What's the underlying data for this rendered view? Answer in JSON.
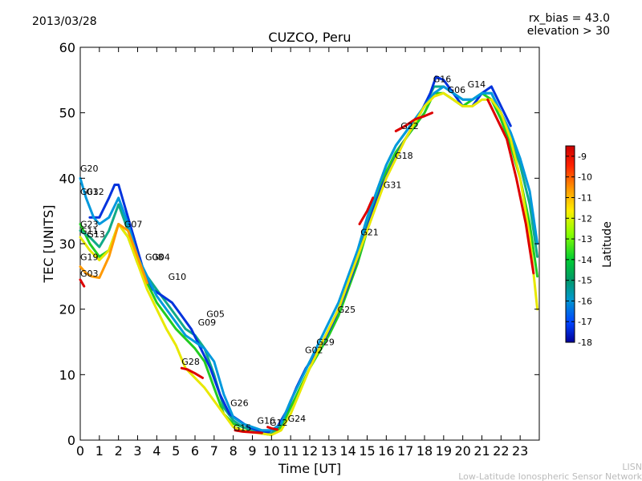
{
  "header": {
    "date": "2013/03/28",
    "info_line1": "rx_bias = 43.0",
    "info_line2": "elevation > 30"
  },
  "footer": {
    "line1": "LISN",
    "line2": "Low-Latitude Ionospheric Sensor Network"
  },
  "chart_data": {
    "type": "line",
    "title": "CUZCO, Peru",
    "xlabel": "Time [UT]",
    "ylabel": "TEC [UNITS]",
    "xlim": [
      0,
      24
    ],
    "ylim": [
      0,
      60
    ],
    "xticks": [
      "0",
      "1",
      "2",
      "3",
      "4",
      "5",
      "6",
      "7",
      "8",
      "9",
      "10",
      "11",
      "12",
      "13",
      "14",
      "15",
      "16",
      "17",
      "18",
      "19",
      "20",
      "21",
      "22",
      "23"
    ],
    "yticks": [
      "0",
      "10",
      "20",
      "30",
      "40",
      "50",
      "60"
    ],
    "colorbar": {
      "label": "Latitude",
      "range": [
        -18,
        -8.5
      ],
      "ticks": [
        "-9",
        "-10",
        "-11",
        "-12",
        "-13",
        "-14",
        "-15",
        "-16",
        "-17",
        "-18"
      ]
    },
    "series": [
      {
        "name": "trace-green-1",
        "color": "#22cc22",
        "x": [
          0,
          0.5,
          1,
          1.5,
          2,
          2.5,
          3,
          3.5,
          4,
          4.5,
          5,
          5.5,
          6,
          6.5,
          7,
          7.5,
          8,
          8.5,
          9,
          9.5,
          10,
          10.5,
          11,
          11.5,
          12,
          12.5,
          13,
          13.5,
          14,
          14.5,
          15,
          15.5,
          16,
          16.5,
          17,
          17.5,
          18,
          18.5,
          19,
          19.5,
          20,
          20.5,
          21,
          21.5,
          22,
          22.5,
          23,
          23.5,
          23.9
        ],
        "y": [
          33,
          30,
          28,
          29,
          33,
          31,
          27,
          24,
          21,
          19,
          17,
          15.5,
          14,
          12,
          8,
          4,
          2.5,
          2,
          1.5,
          1,
          0.8,
          2,
          5,
          8,
          11,
          13.5,
          16,
          19,
          23,
          27,
          32,
          37,
          41,
          44,
          46,
          48,
          50,
          53,
          53,
          52,
          51,
          52,
          53,
          52,
          49,
          45,
          40,
          33,
          25
        ]
      },
      {
        "name": "trace-teal",
        "color": "#11aa88",
        "x": [
          0,
          0.5,
          1,
          1.5,
          2,
          2.5,
          3,
          3.5,
          4,
          4.5,
          5,
          5.5,
          6,
          6.5,
          7,
          7.5,
          8,
          8.5,
          9,
          9.5,
          10,
          10.5,
          11,
          11.5,
          12,
          12.5,
          13,
          13.5,
          14,
          14.5,
          15,
          15.5,
          16,
          16.5,
          17,
          17.5,
          18,
          18.5,
          19,
          19.5,
          20,
          20.5,
          21,
          21.5,
          22,
          22.5,
          23,
          23.5,
          23.9
        ],
        "y": [
          32,
          31,
          29.5,
          32,
          36,
          32,
          28,
          25,
          23,
          21,
          19,
          17,
          16,
          14,
          10,
          5,
          3,
          2,
          1.5,
          1.2,
          1,
          2.5,
          6,
          9,
          12,
          14,
          17,
          20,
          24,
          28,
          33,
          38,
          42,
          45,
          47,
          49,
          51,
          54,
          54,
          53,
          52,
          52,
          53,
          53,
          50,
          46,
          42,
          36,
          28
        ]
      },
      {
        "name": "trace-blue",
        "color": "#0033dd",
        "x": [
          0.5,
          1,
          1.5,
          1.8,
          2,
          2.3,
          2.8,
          3.3,
          3.8,
          4.3,
          4.8,
          5.3,
          5.8,
          6.3,
          6.8,
          7.3,
          7.8,
          8.3,
          8.8,
          9.3,
          9.8,
          10.3,
          10.8,
          11.3,
          11.8,
          12.3,
          12.8,
          13.3,
          13.8,
          14.3,
          14.8,
          15.3,
          15.8,
          16.3,
          16.8,
          17.3,
          17.8,
          18.3,
          18.6,
          19,
          19.5,
          20,
          20.5,
          21,
          21.5,
          22,
          22.5
        ],
        "y": [
          34,
          34,
          37,
          39,
          39,
          36,
          31,
          26,
          23,
          22,
          21,
          19,
          17,
          14,
          11,
          7,
          4,
          3,
          2,
          1.5,
          1.2,
          2,
          4.5,
          8,
          11,
          13,
          15.5,
          18.5,
          22,
          26,
          30.5,
          35,
          39,
          42,
          45,
          47.5,
          50,
          53,
          55.5,
          55,
          53,
          51,
          51,
          53,
          54,
          51,
          48
        ]
      },
      {
        "name": "trace-lightblue",
        "color": "#0099dd",
        "x": [
          0,
          0.3,
          0.7,
          1,
          1.5,
          2,
          2.5,
          3,
          3.5,
          4,
          4.5,
          5,
          5.5,
          6,
          6.5,
          7,
          7.5,
          8,
          8.5,
          9,
          9.5,
          10,
          10.5,
          11,
          11.5,
          12,
          12.5,
          13,
          13.5,
          14,
          14.5,
          15,
          15.5,
          16,
          16.5,
          17,
          17.5,
          18,
          18.5,
          19,
          19.5,
          20,
          20.5,
          21,
          21.5,
          22,
          22.5,
          23,
          23.5,
          23.9
        ],
        "y": [
          40,
          37,
          34,
          33,
          34,
          37,
          33,
          28,
          25,
          22,
          20,
          18,
          16,
          15,
          14,
          12,
          7,
          3.5,
          2.5,
          2,
          1.5,
          1.5,
          2.5,
          6,
          9,
          12,
          15,
          18,
          21,
          25,
          29,
          34,
          38,
          42,
          45,
          47,
          49,
          51,
          53,
          54,
          53,
          52,
          52,
          53,
          53,
          50,
          47,
          43,
          38,
          30
        ]
      },
      {
        "name": "trace-yellow",
        "color": "#e8e800",
        "x": [
          0,
          0.5,
          1,
          1.5,
          2,
          2.5,
          3,
          3.5,
          4,
          4.5,
          5,
          5.5,
          6,
          6.5,
          7,
          7.5,
          8,
          8.5,
          9,
          9.5,
          10,
          10.5,
          11,
          11.5,
          12,
          12.5,
          13,
          13.5,
          14,
          14.5,
          15,
          15.5,
          16,
          16.5,
          17,
          17.5,
          18,
          18.5,
          19,
          19.5,
          20,
          20.5,
          21,
          21.5,
          22,
          22.5,
          23,
          23.5,
          23.9
        ],
        "y": [
          31,
          29,
          27.5,
          29,
          33,
          31,
          27,
          23,
          20,
          17,
          14.5,
          11,
          9.5,
          8,
          6,
          4,
          2,
          1.5,
          1.2,
          1,
          0.8,
          1.5,
          4,
          7.5,
          11,
          14,
          17,
          20,
          24,
          28,
          32,
          36,
          40,
          43,
          46,
          48.5,
          51,
          52.5,
          53,
          52,
          51,
          51,
          52,
          52,
          50,
          46,
          40,
          31,
          20
        ]
      },
      {
        "name": "trace-orange",
        "color": "#ff9900",
        "x": [
          0,
          0.3,
          0.6,
          1,
          1.5,
          2,
          2.5,
          3,
          3.5
        ],
        "y": [
          26.5,
          25.5,
          25,
          24.8,
          28,
          33,
          32,
          28,
          24
        ]
      },
      {
        "name": "trace-red-g03",
        "color": "#dd0000",
        "x": [
          0,
          0.1,
          0.2
        ],
        "y": [
          24.5,
          24,
          23.5
        ]
      },
      {
        "name": "trace-red-g28",
        "color": "#dd0000",
        "x": [
          5.3,
          5.6,
          6,
          6.4
        ],
        "y": [
          11,
          10.8,
          10.2,
          9.5
        ]
      },
      {
        "name": "trace-red-g22",
        "color": "#dd0000",
        "x": [
          16.5,
          17,
          17.5,
          18,
          18.4
        ],
        "y": [
          47.2,
          48,
          49,
          49.5,
          50
        ]
      },
      {
        "name": "trace-red-g15",
        "color": "#dd0000",
        "x": [
          8.1,
          8.5,
          9,
          9.5
        ],
        "y": [
          1.5,
          1.3,
          1.2,
          1.1
        ]
      },
      {
        "name": "trace-red-late",
        "color": "#dd0000",
        "x": [
          21.3,
          21.8,
          22.3,
          22.8,
          23.3,
          23.7
        ],
        "y": [
          52,
          49,
          46,
          40,
          33,
          25.5
        ]
      },
      {
        "name": "trace-red-g21",
        "color": "#dd0000",
        "x": [
          14.6,
          15,
          15.3
        ],
        "y": [
          33,
          35,
          37
        ]
      },
      {
        "name": "trace-red-g12",
        "color": "#dd0000",
        "x": [
          9.8,
          10,
          10.3
        ],
        "y": [
          2,
          1.8,
          1.6
        ]
      }
    ],
    "annotations": [
      {
        "text": "G20",
        "x": 0.0,
        "y": 41
      },
      {
        "text": "G01",
        "x": 0.0,
        "y": 37.5
      },
      {
        "text": "G32",
        "x": 0.3,
        "y": 37.5
      },
      {
        "text": "G23",
        "x": 0.0,
        "y": 32.5
      },
      {
        "text": "G11",
        "x": 0.0,
        "y": 31.5
      },
      {
        "text": "G13",
        "x": 0.35,
        "y": 31
      },
      {
        "text": "G07",
        "x": 2.3,
        "y": 32.5
      },
      {
        "text": "G19",
        "x": 0.0,
        "y": 27.5
      },
      {
        "text": "G03",
        "x": 0.0,
        "y": 25.0
      },
      {
        "text": "G08",
        "x": 3.4,
        "y": 27.5
      },
      {
        "text": "G04",
        "x": 3.75,
        "y": 27.5
      },
      {
        "text": "G10",
        "x": 4.6,
        "y": 24.5
      },
      {
        "text": "G05",
        "x": 6.6,
        "y": 18.8
      },
      {
        "text": "G09",
        "x": 6.15,
        "y": 17.5
      },
      {
        "text": "G28",
        "x": 5.3,
        "y": 11.5
      },
      {
        "text": "G26",
        "x": 7.85,
        "y": 5.2
      },
      {
        "text": "G15",
        "x": 8.0,
        "y": 1.4
      },
      {
        "text": "G16",
        "x": 9.25,
        "y": 2.5
      },
      {
        "text": "G12",
        "x": 9.9,
        "y": 2.2
      },
      {
        "text": "G24",
        "x": 10.85,
        "y": 2.8
      },
      {
        "text": "G02",
        "x": 11.75,
        "y": 13.3
      },
      {
        "text": "G29",
        "x": 12.35,
        "y": 14.5
      },
      {
        "text": "G25",
        "x": 13.45,
        "y": 19.5
      },
      {
        "text": "G21",
        "x": 14.65,
        "y": 31.3
      },
      {
        "text": "G31",
        "x": 15.85,
        "y": 38.5
      },
      {
        "text": "G18",
        "x": 16.45,
        "y": 43.0
      },
      {
        "text": "G22",
        "x": 16.75,
        "y": 47.5
      },
      {
        "text": "G16",
        "x": 18.45,
        "y": 54.7
      },
      {
        "text": "G06",
        "x": 19.2,
        "y": 53.0
      },
      {
        "text": "G14",
        "x": 20.25,
        "y": 53.9
      }
    ]
  }
}
